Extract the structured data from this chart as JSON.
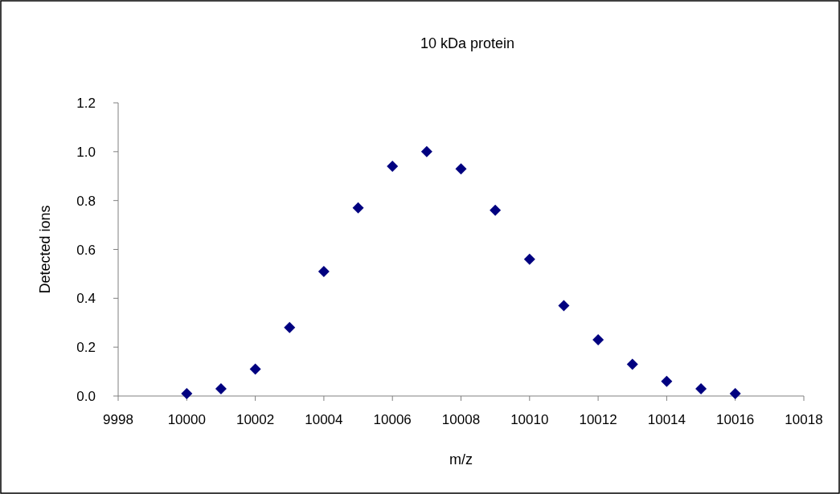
{
  "chart_data": {
    "type": "scatter",
    "title": "10 kDa protein",
    "xlabel": "m/z",
    "ylabel": "Detected ions",
    "x": [
      10000,
      10001,
      10002,
      10003,
      10004,
      10005,
      10006,
      10007,
      10008,
      10009,
      10010,
      10011,
      10012,
      10013,
      10014,
      10015,
      10016
    ],
    "series": [
      {
        "color": "#000080",
        "values": [
          0.01,
          0.03,
          0.11,
          0.28,
          0.51,
          0.77,
          0.94,
          1.0,
          0.93,
          0.76,
          0.56,
          0.37,
          0.23,
          0.13,
          0.06,
          0.03,
          0.01
        ]
      }
    ],
    "xlim": [
      9998,
      10018
    ],
    "xticks": [
      9998,
      10000,
      10002,
      10004,
      10006,
      10008,
      10010,
      10012,
      10014,
      10016,
      10018
    ],
    "ylim": [
      0,
      1.2
    ],
    "yticks": [
      {
        "value": 0,
        "label": "0.0"
      },
      {
        "value": 0.2,
        "label": "0.2"
      },
      {
        "value": 0.4,
        "label": "0.4"
      },
      {
        "value": 0.6,
        "label": "0.6"
      },
      {
        "value": 0.8,
        "label": "0.8"
      },
      {
        "value": 1.0,
        "label": "1.0"
      },
      {
        "value": 1.2,
        "label": "1.2"
      }
    ],
    "marker": "diamond",
    "grid": false
  }
}
